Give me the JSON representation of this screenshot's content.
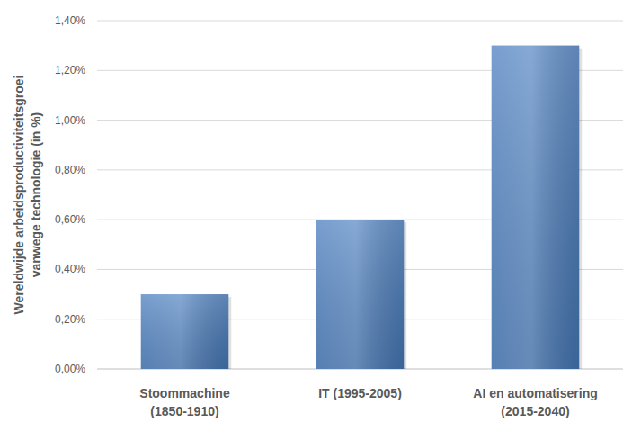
{
  "chart_data": {
    "type": "bar",
    "y_label": "Wereldwijde arbeidsproductiviteitsgroei vanwege technologie (in %)",
    "categories": [
      "Stoommachine (1850-1910)",
      "IT (1995-2005)",
      "AI en automatisering (2015-2040)"
    ],
    "values": [
      0.3,
      0.6,
      1.3
    ],
    "color": "#4a7ebf",
    "ylim": [
      0,
      1.4
    ],
    "yticks": [
      {
        "value": 0,
        "label": "0,00%"
      },
      {
        "value": 0.2,
        "label": "0,20%"
      },
      {
        "value": 0.4,
        "label": "0,40%"
      },
      {
        "value": 0.6,
        "label": "0,60%"
      },
      {
        "value": 0.8,
        "label": "0,80%"
      },
      {
        "value": 1,
        "label": "1,00%"
      },
      {
        "value": 1.2,
        "label": "1,20%"
      },
      {
        "value": 1.4,
        "label": "1,40%"
      }
    ],
    "grid": true
  }
}
